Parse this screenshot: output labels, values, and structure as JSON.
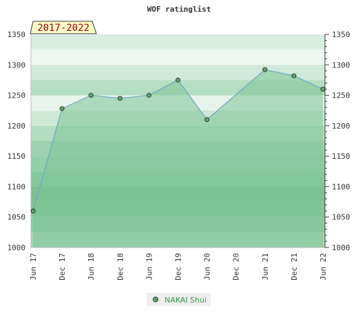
{
  "chart_data": {
    "type": "area",
    "title": "WOF ratinglist",
    "period_badge": "2017-2022",
    "xlabel": "",
    "ylabel": "",
    "ylim": [
      1000,
      1350
    ],
    "yticks": [
      1000,
      1050,
      1100,
      1150,
      1200,
      1250,
      1300,
      1350
    ],
    "xticks": [
      "Jun 17",
      "Dec 17",
      "Jun 18",
      "Dec 18",
      "Jun 19",
      "Dec 19",
      "Jun 20",
      "Dec 20",
      "Jun 21",
      "Dec 21",
      "Jun 22"
    ],
    "series": [
      {
        "name": "NAKAI Shui",
        "points": [
          {
            "x": "Jun 17",
            "y": 1060
          },
          {
            "x": "Dec 17",
            "y": 1228
          },
          {
            "x": "Jun 18",
            "y": 1250
          },
          {
            "x": "Dec 18",
            "y": 1245
          },
          {
            "x": "Jun 19",
            "y": 1250
          },
          {
            "x": "Dec 19",
            "y": 1275
          },
          {
            "x": "Jun 20",
            "y": 1210
          },
          {
            "x": "Jun 21",
            "y": 1292
          },
          {
            "x": "Dec 21",
            "y": 1282
          },
          {
            "x": "Jun 22",
            "y": 1260
          }
        ]
      }
    ],
    "legend_position": "bottom-center",
    "grid": true,
    "colors": {
      "fill": "#7ec496",
      "line": "#6aa8c8",
      "marker": "#3f8f52",
      "band_dark": "#b7dfc3",
      "band_light": "#f0f8f2",
      "badge_bg": "#ffffc8"
    }
  }
}
